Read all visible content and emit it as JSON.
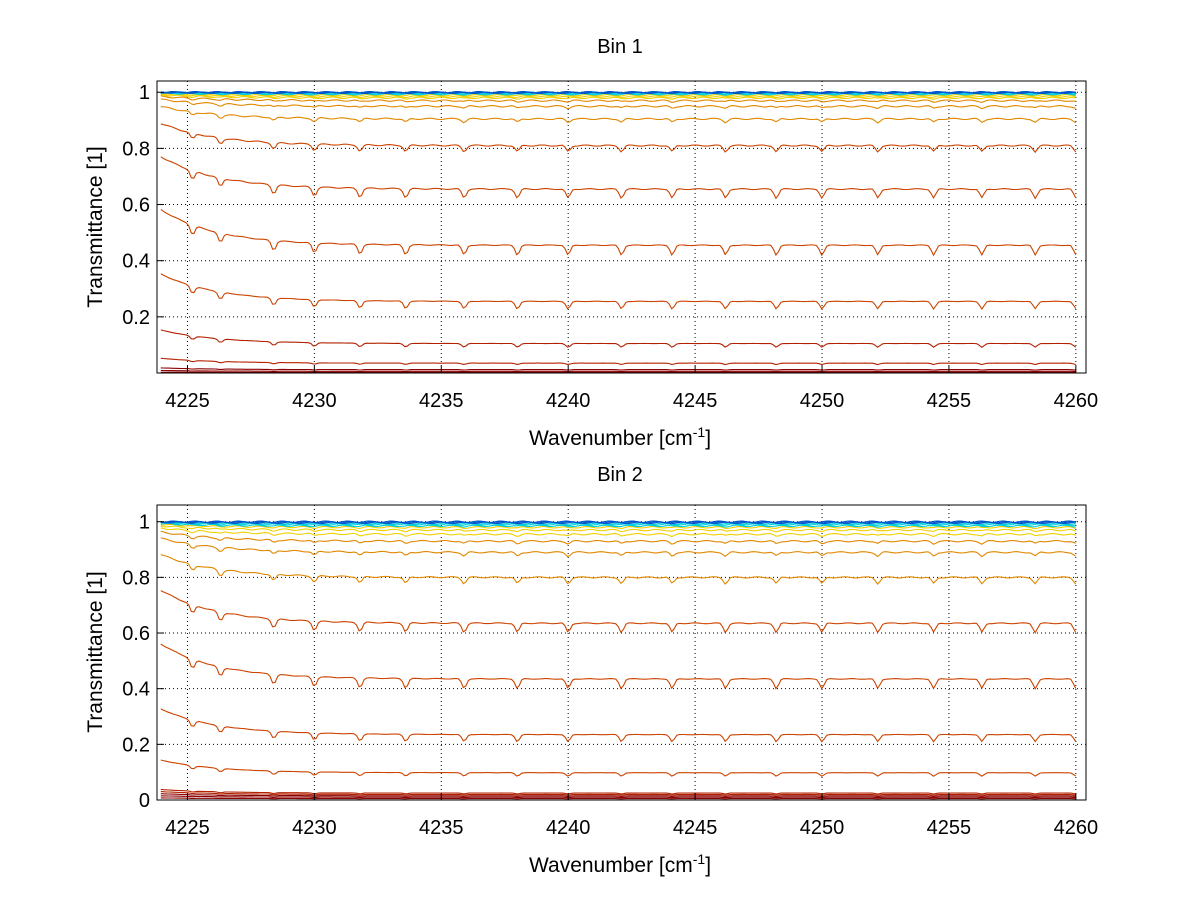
{
  "colors": {
    "deep_red": "#8b0000",
    "red": "#b22200",
    "orange_red": "#cc4400",
    "orange": "#e08800",
    "yellow": "#f0d000",
    "cyan": "#00ccdd",
    "blue": "#0055cc",
    "grid": "#000000"
  },
  "chart_data": [
    {
      "type": "line",
      "title": "Bin 1",
      "xlabel": "Wavenumber [cm",
      "xlabel_sup": "-1",
      "xlabel_suffix": "]",
      "ylabel": "Transmittance [1]",
      "xlim": [
        4223.8,
        4260.4
      ],
      "ylim": [
        0,
        1.04
      ],
      "grid": true,
      "xticks": [
        4225,
        4230,
        4235,
        4240,
        4245,
        4250,
        4255,
        4260
      ],
      "yticks": [
        0.2,
        0.4,
        0.6,
        0.8,
        1
      ],
      "ytick_labels": [
        "0.2",
        "0.4",
        "0.6",
        "0.8",
        "1"
      ],
      "series_levels": [
        0.002,
        0.006,
        0.012,
        0.035,
        0.105,
        0.255,
        0.455,
        0.655,
        0.81,
        0.905,
        0.95,
        0.97,
        0.98,
        0.985,
        0.99,
        0.993,
        0.995,
        0.997,
        0.998,
        0.999,
        1.0
      ]
    },
    {
      "type": "line",
      "title": "Bin 2",
      "xlabel": "Wavenumber [cm",
      "xlabel_sup": "-1",
      "xlabel_suffix": "]",
      "ylabel": "Transmittance [1]",
      "xlim": [
        4223.8,
        4260.4
      ],
      "ylim": [
        0,
        1.06
      ],
      "grid": true,
      "xticks": [
        4225,
        4230,
        4235,
        4240,
        4245,
        4250,
        4255,
        4260
      ],
      "yticks": [
        0,
        0.2,
        0.4,
        0.6,
        0.8,
        1
      ],
      "ytick_labels": [
        "0",
        "0.2",
        "0.4",
        "0.6",
        "0.8",
        "1"
      ],
      "series_levels": [
        0.005,
        0.01,
        0.015,
        0.02,
        0.025,
        0.098,
        0.235,
        0.435,
        0.635,
        0.8,
        0.89,
        0.93,
        0.955,
        0.97,
        0.98,
        0.985,
        0.99,
        0.993,
        0.996,
        0.998,
        1.0
      ]
    }
  ]
}
